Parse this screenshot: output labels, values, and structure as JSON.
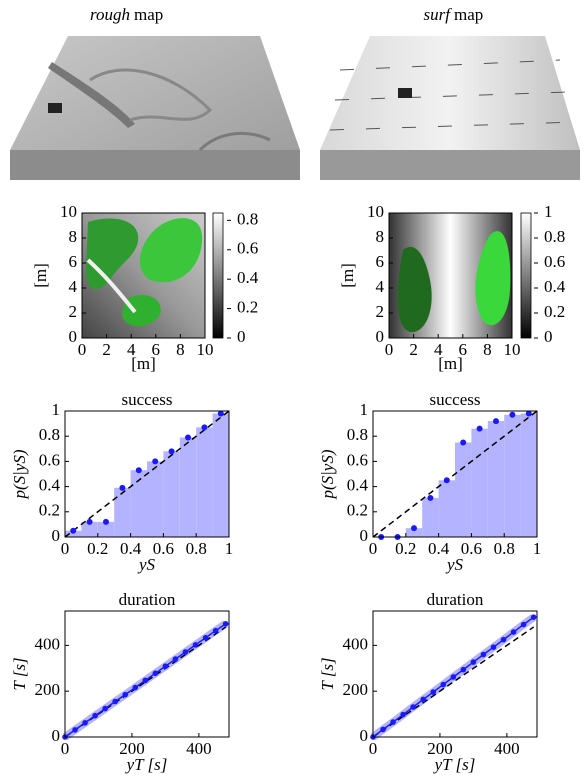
{
  "maps": [
    {
      "emphasis": "rough",
      "label": "map"
    },
    {
      "emphasis": "surf",
      "label": "map"
    }
  ],
  "chart_data": [
    {
      "type": "heatmap",
      "xlim": [
        0,
        10
      ],
      "ylim": [
        0,
        10
      ],
      "xticks": [
        0,
        2,
        4,
        6,
        8,
        10
      ],
      "yticks": [
        0,
        2,
        4,
        6,
        8,
        10
      ],
      "xlabel": "[m]",
      "ylabel": "[m]",
      "clim": [
        0,
        0.85
      ],
      "cticks": [
        0,
        0.2,
        0.4,
        0.6,
        0.8
      ]
    },
    {
      "type": "heatmap",
      "xlim": [
        0,
        10
      ],
      "ylim": [
        0,
        10
      ],
      "xticks": [
        0,
        2,
        4,
        6,
        8,
        10
      ],
      "yticks": [
        0,
        2,
        4,
        6,
        8,
        10
      ],
      "xlabel": "[m]",
      "ylabel": "[m]",
      "clim": [
        0,
        1
      ],
      "cticks": [
        0,
        0.2,
        0.4,
        0.6,
        0.8,
        1
      ]
    },
    {
      "type": "step",
      "title": "success",
      "xlabel": "yS",
      "ylabel": "p(S|yS)",
      "xlim": [
        0,
        1
      ],
      "ylim": [
        0,
        1
      ],
      "xticks": [
        0,
        0.2,
        0.4,
        0.6,
        0.8,
        1
      ],
      "yticks": [
        0,
        0.2,
        0.4,
        0.6,
        0.8,
        1
      ],
      "bins": [
        0,
        0.1,
        0.2,
        0.3,
        0.4,
        0.5,
        0.6,
        0.7,
        0.8,
        0.9,
        1
      ],
      "x": [
        0.05,
        0.15,
        0.25,
        0.35,
        0.45,
        0.55,
        0.65,
        0.75,
        0.85,
        0.95
      ],
      "values": [
        0.05,
        0.12,
        0.12,
        0.39,
        0.53,
        0.6,
        0.68,
        0.79,
        0.87,
        0.98
      ],
      "color": "#1a1aff",
      "fill": "#b3b3ff"
    },
    {
      "type": "step",
      "title": "success",
      "xlabel": "yS",
      "ylabel": "p(S|yS)",
      "xlim": [
        0,
        1
      ],
      "ylim": [
        0,
        1
      ],
      "xticks": [
        0,
        0.2,
        0.4,
        0.6,
        0.8,
        1
      ],
      "yticks": [
        0,
        0.2,
        0.4,
        0.6,
        0.8,
        1
      ],
      "bins": [
        0,
        0.1,
        0.2,
        0.3,
        0.4,
        0.5,
        0.6,
        0.7,
        0.8,
        0.9,
        1
      ],
      "x": [
        0.05,
        0.15,
        0.25,
        0.35,
        0.45,
        0.55,
        0.65,
        0.75,
        0.85,
        0.95
      ],
      "values": [
        0,
        0,
        0.07,
        0.31,
        0.45,
        0.75,
        0.86,
        0.92,
        0.97,
        0.98
      ],
      "color": "#1a1aff",
      "fill": "#b3b3ff"
    },
    {
      "type": "line",
      "title": "duration",
      "xlabel": "yT [s]",
      "ylabel": "T [s]",
      "xlim": [
        0,
        490
      ],
      "ylim": [
        0,
        550
      ],
      "xticks": [
        0,
        200,
        400
      ],
      "yticks": [
        0,
        200,
        400
      ],
      "x": [
        0,
        30,
        60,
        90,
        120,
        150,
        180,
        210,
        240,
        270,
        300,
        330,
        360,
        390,
        420,
        450,
        480
      ],
      "values": [
        0,
        31,
        62,
        93,
        124,
        155,
        185,
        216,
        247,
        278,
        309,
        340,
        371,
        402,
        433,
        464,
        494
      ],
      "color": "#1a1aff",
      "fill": "#b3b3ff"
    },
    {
      "type": "line",
      "title": "duration",
      "xlabel": "yT [s]",
      "ylabel": "T [s]",
      "xlim": [
        0,
        490
      ],
      "ylim": [
        0,
        550
      ],
      "xticks": [
        0,
        200,
        400
      ],
      "yticks": [
        0,
        200,
        400
      ],
      "x": [
        0,
        30,
        60,
        90,
        120,
        150,
        180,
        210,
        240,
        270,
        300,
        330,
        360,
        390,
        420,
        450,
        480
      ],
      "values": [
        0,
        33,
        65,
        98,
        131,
        164,
        196,
        229,
        262,
        294,
        327,
        360,
        392,
        425,
        458,
        491,
        523
      ],
      "color": "#1a1aff",
      "fill": "#b3b3ff"
    }
  ]
}
